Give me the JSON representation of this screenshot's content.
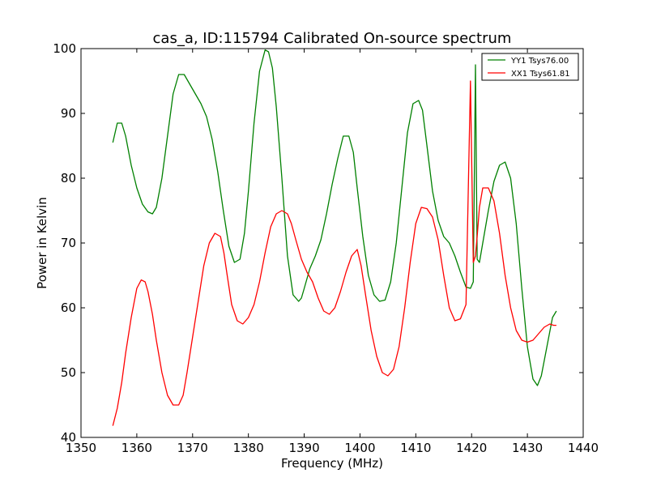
{
  "chart_data": {
    "type": "line",
    "title": "cas_a, ID:115794 Calibrated On-source spectrum",
    "xlabel": "Frequency (MHz)",
    "ylabel": "Power in Kelvin",
    "xlim": [
      1350,
      1440
    ],
    "ylim": [
      40,
      100
    ],
    "xticks": [
      "1350",
      "1360",
      "1370",
      "1380",
      "1390",
      "1400",
      "1410",
      "1420",
      "1430",
      "1440"
    ],
    "yticks": [
      "40",
      "50",
      "60",
      "70",
      "80",
      "90",
      "100"
    ],
    "grid": false,
    "legend_position": "top-right",
    "series": [
      {
        "name": "YY1 Tsys76.00",
        "color": "#008000",
        "x": [
          1355.7,
          1356.5,
          1357.3,
          1358.0,
          1359.0,
          1360.0,
          1361.0,
          1362.0,
          1362.8,
          1363.5,
          1364.5,
          1365.5,
          1366.5,
          1367.5,
          1368.5,
          1369.5,
          1370.5,
          1371.5,
          1372.5,
          1373.5,
          1374.5,
          1375.5,
          1376.5,
          1377.5,
          1378.5,
          1379.3,
          1380.0,
          1381.0,
          1382.0,
          1383.0,
          1383.6,
          1384.3,
          1385.0,
          1386.0,
          1387.0,
          1388.0,
          1389.0,
          1389.5,
          1390.0,
          1391.0,
          1392.0,
          1393.0,
          1394.0,
          1395.0,
          1396.0,
          1397.0,
          1398.0,
          1398.8,
          1399.5,
          1400.5,
          1401.5,
          1402.5,
          1403.5,
          1404.5,
          1405.5,
          1406.5,
          1407.5,
          1408.5,
          1409.5,
          1410.5,
          1411.2,
          1412.0,
          1413.0,
          1414.0,
          1415.0,
          1416.0,
          1417.0,
          1418.0,
          1419.0,
          1419.8,
          1420.3,
          1420.7,
          1421.0,
          1421.4,
          1422.0,
          1423.0,
          1424.0,
          1425.0,
          1426.0,
          1427.0,
          1428.0,
          1429.0,
          1430.0,
          1431.0,
          1431.8,
          1432.5,
          1433.5,
          1434.5,
          1435.2
        ],
        "y": [
          85.5,
          88.5,
          88.5,
          86.5,
          82.0,
          78.5,
          76.0,
          74.8,
          74.5,
          75.5,
          80.0,
          86.5,
          93.0,
          96.0,
          96.0,
          94.5,
          93.0,
          91.5,
          89.5,
          86.0,
          81.0,
          75.0,
          69.5,
          67.0,
          67.5,
          71.5,
          78.0,
          88.5,
          96.5,
          99.8,
          99.5,
          97.0,
          91.0,
          80.0,
          68.0,
          62.0,
          61.0,
          61.5,
          63.0,
          66.0,
          68.0,
          70.5,
          74.5,
          79.0,
          83.0,
          86.5,
          86.5,
          84.0,
          78.5,
          71.0,
          65.0,
          62.0,
          61.0,
          61.2,
          64.0,
          70.0,
          78.5,
          87.0,
          91.5,
          92.0,
          90.5,
          85.0,
          78.0,
          73.5,
          71.0,
          70.0,
          68.0,
          65.5,
          63.2,
          63.0,
          64.0,
          97.5,
          67.5,
          67.0,
          70.0,
          75.0,
          79.5,
          82.0,
          82.5,
          80.0,
          73.0,
          63.0,
          54.0,
          49.0,
          48.0,
          49.5,
          54.0,
          58.5,
          59.5
        ]
      },
      {
        "name": "XX1 Tsys61.81",
        "color": "#ff0000",
        "x": [
          1355.7,
          1356.5,
          1357.3,
          1358.0,
          1359.0,
          1360.0,
          1360.8,
          1361.5,
          1362.0,
          1362.8,
          1363.5,
          1364.5,
          1365.5,
          1366.5,
          1367.5,
          1368.3,
          1369.0,
          1370.0,
          1371.0,
          1372.0,
          1373.0,
          1374.0,
          1375.0,
          1375.6,
          1376.2,
          1377.0,
          1378.0,
          1379.0,
          1380.0,
          1381.0,
          1382.0,
          1383.0,
          1384.0,
          1385.0,
          1386.0,
          1387.0,
          1387.7,
          1388.5,
          1389.5,
          1390.5,
          1391.5,
          1392.5,
          1393.5,
          1394.5,
          1395.5,
          1396.5,
          1397.5,
          1398.5,
          1399.5,
          1400.2,
          1401.0,
          1402.0,
          1403.0,
          1404.0,
          1405.0,
          1406.0,
          1407.0,
          1408.0,
          1409.0,
          1410.0,
          1411.0,
          1412.0,
          1413.0,
          1414.0,
          1415.0,
          1416.0,
          1417.0,
          1418.0,
          1419.0,
          1419.8,
          1420.3,
          1420.7,
          1421.0,
          1421.4,
          1422.0,
          1423.0,
          1424.0,
          1425.0,
          1426.0,
          1427.0,
          1428.0,
          1429.0,
          1430.0,
          1431.0,
          1432.0,
          1433.0,
          1434.0,
          1434.7,
          1435.2
        ],
        "y": [
          41.8,
          44.5,
          48.5,
          53.0,
          58.5,
          63.0,
          64.3,
          64.0,
          62.5,
          59.0,
          55.0,
          50.0,
          46.5,
          45.0,
          45.0,
          46.5,
          50.0,
          55.5,
          61.0,
          66.5,
          70.0,
          71.5,
          71.0,
          68.5,
          65.0,
          60.5,
          58.0,
          57.5,
          58.5,
          60.5,
          64.0,
          68.5,
          72.5,
          74.5,
          75.0,
          74.5,
          73.0,
          70.5,
          67.5,
          65.5,
          64.0,
          61.5,
          59.5,
          59.0,
          60.0,
          62.5,
          65.5,
          68.0,
          69.0,
          66.5,
          62.0,
          56.5,
          52.5,
          50.0,
          49.5,
          50.5,
          54.0,
          60.0,
          67.0,
          73.0,
          75.5,
          75.3,
          74.0,
          70.5,
          65.0,
          60.0,
          58.0,
          58.3,
          60.5,
          95.0,
          67.0,
          68.0,
          71.0,
          75.5,
          78.5,
          78.5,
          76.5,
          71.5,
          65.0,
          60.0,
          56.5,
          55.0,
          54.7,
          55.0,
          56.0,
          57.0,
          57.5,
          57.3,
          57.3
        ]
      }
    ]
  }
}
